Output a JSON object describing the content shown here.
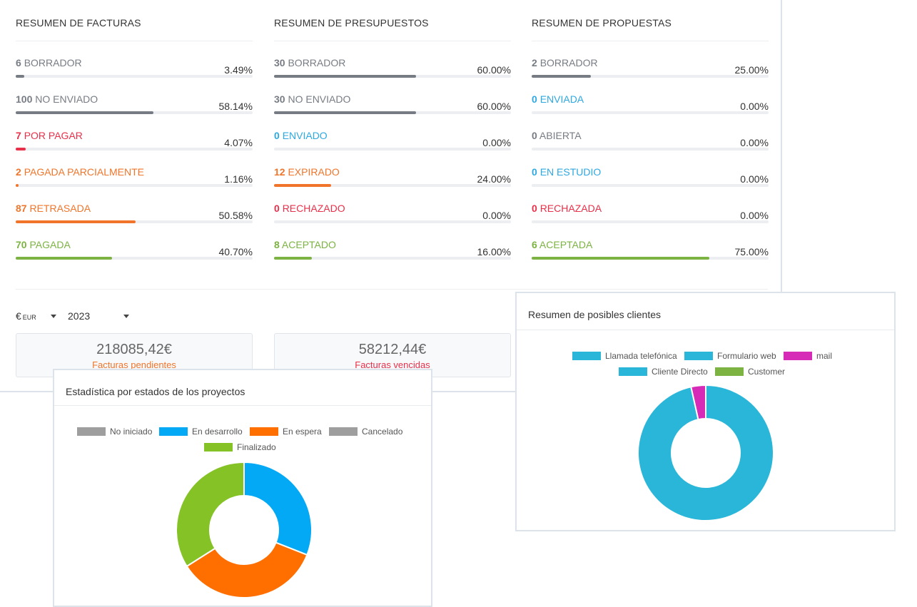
{
  "facturas": {
    "title": "RESUMEN DE FACTURAS",
    "items": [
      {
        "count": "6",
        "label": "BORRADOR",
        "pct": "3.49%",
        "color": "#777c84",
        "fill": 0.0349
      },
      {
        "count": "100",
        "label": "NO ENVIADO",
        "pct": "58.14%",
        "color": "#777c84",
        "fill": 0.5814
      },
      {
        "count": "7",
        "label": "POR PAGAR",
        "pct": "4.07%",
        "color": "#e8304a",
        "fill": 0.0407
      },
      {
        "count": "2",
        "label": "PAGADA PARCIALMENTE",
        "pct": "1.16%",
        "color": "#f0752b",
        "fill": 0.0116
      },
      {
        "count": "87",
        "label": "RETRASADA",
        "pct": "50.58%",
        "color": "#f0752b",
        "fill": 0.5058
      },
      {
        "count": "70",
        "label": "PAGADA",
        "pct": "40.70%",
        "color": "#7cb342",
        "fill": 0.407
      }
    ]
  },
  "presupuestos": {
    "title": "RESUMEN DE PRESUPUESTOS",
    "items": [
      {
        "count": "30",
        "label": "BORRADOR",
        "pct": "60.00%",
        "color": "#777c84",
        "fill": 0.6
      },
      {
        "count": "30",
        "label": "NO ENVIADO",
        "pct": "60.00%",
        "color": "#777c84",
        "fill": 0.6
      },
      {
        "count": "0",
        "label": "ENVIADO",
        "pct": "0.00%",
        "color": "#2ea8e0",
        "fill": 0
      },
      {
        "count": "12",
        "label": "EXPIRADO",
        "pct": "24.00%",
        "color": "#f0752b",
        "fill": 0.24
      },
      {
        "count": "0",
        "label": "RECHAZADO",
        "pct": "0.00%",
        "color": "#e8304a",
        "fill": 0
      },
      {
        "count": "8",
        "label": "ACEPTADO",
        "pct": "16.00%",
        "color": "#7cb342",
        "fill": 0.16
      }
    ]
  },
  "propuestas": {
    "title": "RESUMEN DE PROPUESTAS",
    "items": [
      {
        "count": "2",
        "label": "BORRADOR",
        "pct": "25.00%",
        "color": "#777c84",
        "fill": 0.25
      },
      {
        "count": "0",
        "label": "ENVIADA",
        "pct": "0.00%",
        "color": "#2ea8e0",
        "fill": 0
      },
      {
        "count": "0",
        "label": "ABIERTA",
        "pct": "0.00%",
        "color": "#777c84",
        "fill": 0
      },
      {
        "count": "0",
        "label": "EN ESTUDIO",
        "pct": "0.00%",
        "color": "#2ea8e0",
        "fill": 0
      },
      {
        "count": "0",
        "label": "RECHAZADA",
        "pct": "0.00%",
        "color": "#e8304a",
        "fill": 0
      },
      {
        "count": "6",
        "label": "ACEPTADA",
        "pct": "75.00%",
        "color": "#7cb342",
        "fill": 0.75
      }
    ]
  },
  "filters": {
    "currency_symbol": "€",
    "currency_code": "EUR",
    "year": "2023"
  },
  "summary": {
    "pendientes_amount": "218085,42€",
    "pendientes_label": "Facturas pendientes",
    "pendientes_color": "#f0752b",
    "vencidas_amount": "58212,44€",
    "vencidas_label": "Facturas vencidas",
    "vencidas_color": "#e8304a"
  },
  "projects_card": {
    "title": "Estadística por estados de los proyectos",
    "chart_data": {
      "type": "pie",
      "donut": true,
      "legend": [
        "No iniciado",
        "En desarrollo",
        "En espera",
        "Cancelado",
        "Finalizado"
      ],
      "colors": [
        "#9e9e9e",
        "#03a9f4",
        "#ff6f00",
        "#9e9e9e",
        "#84c225"
      ],
      "values": [
        0,
        31,
        35,
        0,
        34
      ]
    }
  },
  "leads_card": {
    "title": "Resumen de posibles clientes",
    "chart_data": {
      "type": "pie",
      "donut": true,
      "legend": [
        "Llamada telefónica",
        "Formulario web",
        "mail",
        "Cliente Directo",
        "Customer"
      ],
      "colors": [
        "#29b6d8",
        "#29b6d8",
        "#d62bb7",
        "#29b6d8",
        "#7cb342"
      ],
      "values": [
        0,
        96.5,
        3.5,
        0,
        0
      ]
    }
  }
}
